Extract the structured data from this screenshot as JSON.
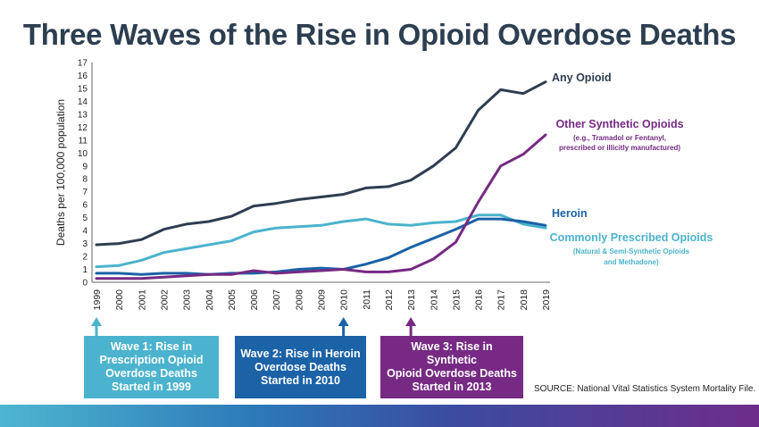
{
  "title": "Three Waves of the Rise in Opioid Overdose Deaths",
  "chart_data": {
    "type": "line",
    "ylabel": "Deaths per 100,000 population",
    "ylim": [
      0,
      17
    ],
    "yticks": [
      0,
      1,
      2,
      3,
      4,
      5,
      6,
      7,
      8,
      9,
      10,
      11,
      12,
      13,
      14,
      15,
      16,
      17
    ],
    "categories": [
      "1999",
      "2000",
      "2001",
      "2002",
      "2003",
      "2004",
      "2005",
      "2006",
      "2007",
      "2008",
      "2009",
      "2010",
      "2011",
      "2012",
      "2013",
      "2014",
      "2015",
      "2016",
      "2017",
      "2018",
      "2019"
    ],
    "grid": false,
    "series": [
      {
        "name": "Any Opioid",
        "color": "#2e3d4f",
        "values": [
          2.9,
          3.0,
          3.3,
          4.1,
          4.5,
          4.7,
          5.1,
          5.9,
          6.1,
          6.4,
          6.6,
          6.8,
          7.3,
          7.4,
          7.9,
          9.0,
          10.4,
          13.3,
          14.9,
          14.6,
          15.5
        ]
      },
      {
        "name": "Other Synthetic Opioids",
        "color": "#762a83",
        "note": "(e.g., Tramadol or Fentanyl, prescribed or illicitly manufactured)",
        "values": [
          0.3,
          0.3,
          0.3,
          0.4,
          0.5,
          0.6,
          0.6,
          0.9,
          0.7,
          0.8,
          0.9,
          1.0,
          0.8,
          0.8,
          1.0,
          1.8,
          3.1,
          6.2,
          9.0,
          9.9,
          11.4
        ]
      },
      {
        "name": "Heroin",
        "color": "#1b62a7",
        "values": [
          0.7,
          0.7,
          0.6,
          0.7,
          0.7,
          0.6,
          0.7,
          0.7,
          0.8,
          1.0,
          1.1,
          1.0,
          1.4,
          1.9,
          2.7,
          3.4,
          4.1,
          4.9,
          4.9,
          4.7,
          4.4
        ]
      },
      {
        "name": "Commonly Prescribed Opioids",
        "color": "#4bb3cd",
        "note": "(Natural & Semi-Synthetic Opioids and Methadone)",
        "values": [
          1.2,
          1.3,
          1.7,
          2.3,
          2.6,
          2.9,
          3.2,
          3.9,
          4.2,
          4.3,
          4.4,
          4.7,
          4.9,
          4.5,
          4.4,
          4.6,
          4.7,
          5.2,
          5.2,
          4.5,
          4.2
        ]
      }
    ]
  },
  "labels": {
    "any_opioid": "Any Opioid",
    "other_synthetic": "Other Synthetic Opioids",
    "other_synthetic_note1": "(e.g., Tramadol or Fentanyl,",
    "other_synthetic_note2": "prescribed or illicitly manufactured)",
    "heroin": "Heroin",
    "prescribed": "Commonly Prescribed Opioids",
    "prescribed_note1": "(Natural & Semi-Synthetic Opioids",
    "prescribed_note2": "and Methadone)"
  },
  "waves": [
    {
      "text": "Wave 1: Rise in\nPrescription Opioid\nOverdose Deaths\nStarted in 1999",
      "year": "1999",
      "color": "#4bb3cd"
    },
    {
      "text": "Wave 2: Rise in Heroin\nOverdose Deaths\nStarted in 2010",
      "year": "2010",
      "color": "#1b62a7"
    },
    {
      "text": "Wave 3: Rise in Synthetic\nOpioid Overdose Deaths\nStarted in 2013",
      "year": "2013",
      "color": "#762a83"
    }
  ],
  "source": "SOURCE: National Vital Statistics System Mortality File."
}
